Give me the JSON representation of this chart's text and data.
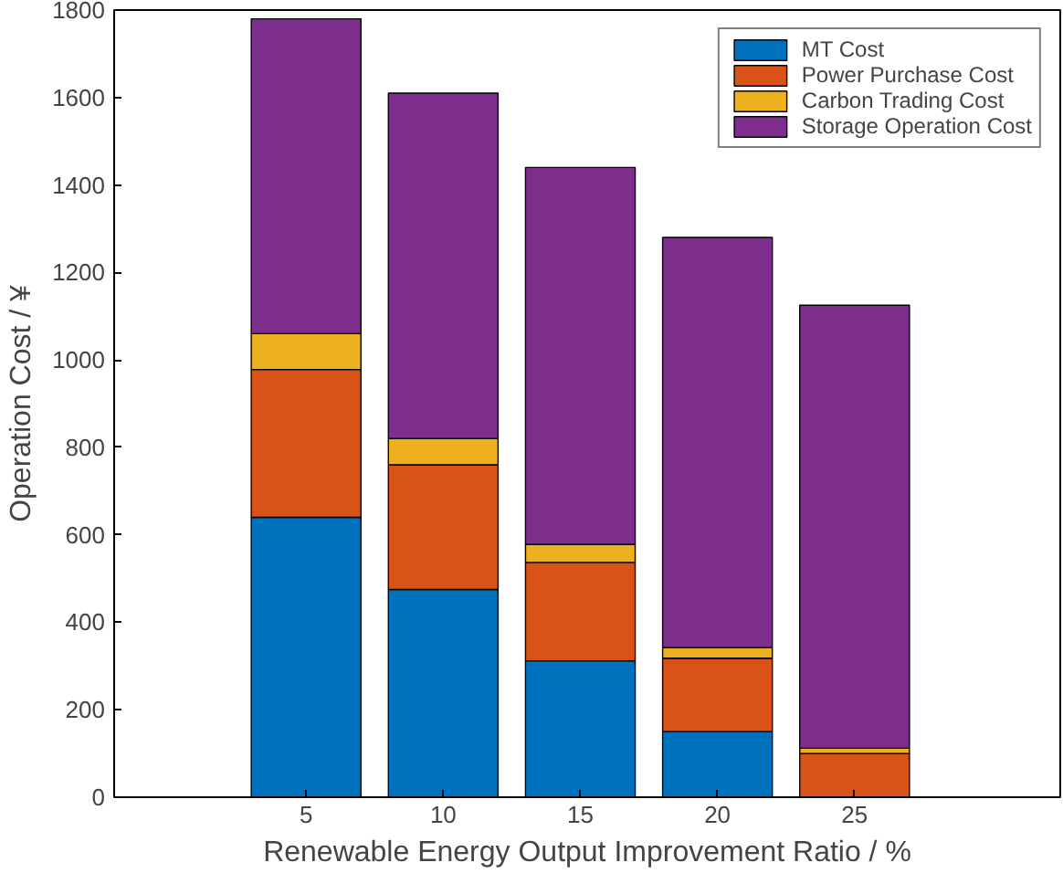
{
  "chart_data": {
    "type": "bar",
    "stacked": true,
    "xlabel": "Renewable Energy Output Improvement Ratio / %",
    "ylabel": "Operation Cost / ¥",
    "categories": [
      "5",
      "10",
      "15",
      "20",
      "25"
    ],
    "series": [
      {
        "name": "MT Cost",
        "color": "#0072bd",
        "values": [
          640,
          475,
          312,
          150,
          0
        ]
      },
      {
        "name": "Power Purchase Cost",
        "color": "#d95319",
        "values": [
          338,
          285,
          225,
          168,
          100
        ]
      },
      {
        "name": "Carbon Trading Cost",
        "color": "#edb120",
        "values": [
          82,
          60,
          41,
          24,
          12
        ]
      },
      {
        "name": "Storage Operation Cost",
        "color": "#7e2f8e",
        "values": [
          720,
          790,
          862,
          938,
          1013
        ]
      }
    ],
    "ylim": [
      0,
      1800
    ],
    "yticks": [
      0,
      200,
      400,
      600,
      800,
      1000,
      1200,
      1400,
      1600,
      1800
    ],
    "grid": false,
    "legend": "top right"
  }
}
